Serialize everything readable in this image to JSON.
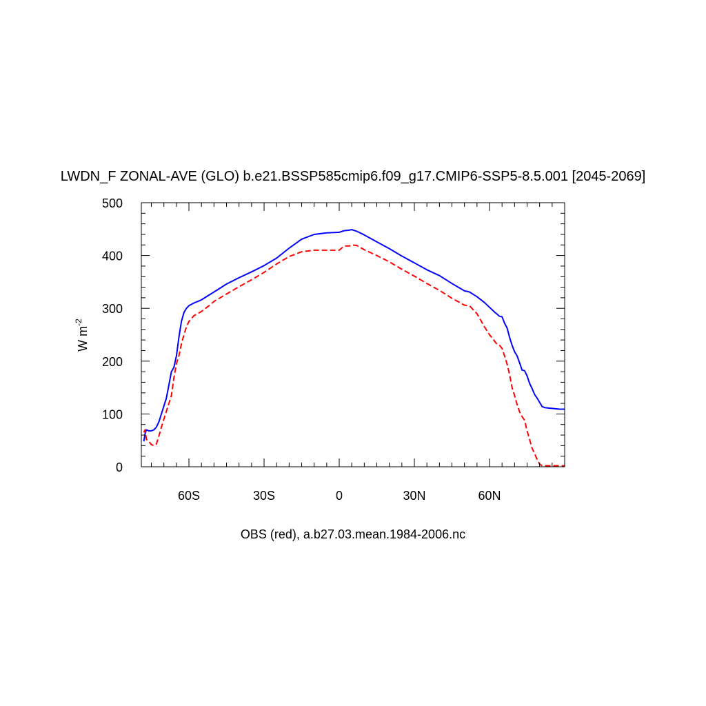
{
  "chart_data": {
    "type": "line",
    "title": "LWDN_F ZONAL-AVE (GLO) b.e21.BSSP585cmip6.f09_g17.CMIP6-SSP5-8.5.001 [2045-2069]",
    "subtitle": "OBS (red), a.b27.03.mean.1984-2006.nc",
    "ylabel": "W m",
    "ylabel_sup": "-2",
    "xlim": [
      -79,
      90
    ],
    "ylim": [
      0,
      500
    ],
    "x_ticks": [
      {
        "value": -60,
        "label": "60S"
      },
      {
        "value": -30,
        "label": "30S"
      },
      {
        "value": 0,
        "label": "0"
      },
      {
        "value": 30,
        "label": "30N"
      },
      {
        "value": 60,
        "label": "60N"
      }
    ],
    "y_ticks": [
      {
        "value": 0,
        "label": "0"
      },
      {
        "value": 100,
        "label": "100"
      },
      {
        "value": 200,
        "label": "200"
      },
      {
        "value": 300,
        "label": "300"
      },
      {
        "value": 400,
        "label": "400"
      },
      {
        "value": 500,
        "label": "500"
      }
    ],
    "series": [
      {
        "name": "",
        "color": "#0000ff",
        "dash": "solid",
        "x": [
          -78,
          -77.5,
          -77,
          -76,
          -75,
          -74,
          -73,
          -72,
          -71,
          -70,
          -69,
          -68,
          -67,
          -66,
          -65,
          -64,
          -63,
          -62,
          -61,
          -60,
          -58,
          -55,
          -52,
          -50,
          -45,
          -40,
          -35,
          -30,
          -25,
          -20,
          -15,
          -10,
          -5,
          0,
          2,
          4,
          5,
          7,
          10,
          15,
          20,
          25,
          30,
          35,
          40,
          45,
          50,
          52,
          55,
          58,
          60,
          62,
          63,
          64,
          65,
          66,
          67,
          68,
          69,
          70,
          71,
          72,
          73,
          74,
          75,
          76,
          77,
          78,
          79,
          80,
          81,
          82,
          84,
          86,
          88,
          90
        ],
        "values": [
          48,
          62,
          70,
          68,
          68,
          70,
          75,
          85,
          100,
          115,
          130,
          155,
          180,
          188,
          210,
          245,
          275,
          292,
          300,
          305,
          310,
          316,
          325,
          331,
          346,
          358,
          369,
          381,
          395,
          414,
          431,
          440,
          443,
          444,
          447,
          448,
          449,
          446,
          439,
          426,
          413,
          399,
          386,
          373,
          362,
          347,
          333,
          331,
          322,
          311,
          302,
          293,
          289,
          285,
          284,
          272,
          263,
          245,
          230,
          218,
          210,
          197,
          183,
          182,
          172,
          158,
          148,
          137,
          130,
          122,
          114,
          112,
          111,
          110,
          109,
          109
        ]
      },
      {
        "name": "OBS",
        "color": "#ff0000",
        "dash": "dashed",
        "x": [
          -78,
          -77.5,
          -77,
          -76,
          -75,
          -74,
          -73,
          -72,
          -71,
          -70,
          -69,
          -68,
          -67,
          -66,
          -65,
          -64,
          -63,
          -62,
          -61,
          -60,
          -58,
          -55,
          -52,
          -50,
          -45,
          -40,
          -35,
          -30,
          -25,
          -20,
          -15,
          -10,
          -5,
          0,
          2,
          4,
          5,
          7,
          10,
          15,
          20,
          25,
          30,
          35,
          40,
          45,
          50,
          52,
          55,
          58,
          60,
          62,
          63,
          64,
          65,
          66,
          67,
          68,
          69,
          70,
          71,
          72,
          73,
          74,
          75,
          76,
          77,
          78,
          79,
          80,
          81,
          82,
          84,
          86,
          88,
          90
        ],
        "values": [
          65,
          70,
          52,
          48,
          42,
          40,
          43,
          58,
          75,
          90,
          105,
          120,
          135,
          168,
          195,
          210,
          232,
          250,
          265,
          275,
          286,
          294,
          305,
          313,
          327,
          341,
          354,
          368,
          384,
          398,
          407,
          410,
          410,
          410,
          418,
          418,
          420,
          419,
          411,
          400,
          388,
          374,
          361,
          347,
          334,
          319,
          306,
          305,
          290,
          265,
          250,
          238,
          232,
          230,
          224,
          210,
          195,
          175,
          150,
          135,
          118,
          104,
          95,
          88,
          68,
          52,
          35,
          25,
          14,
          5,
          2,
          2,
          2,
          2,
          2,
          2
        ]
      }
    ],
    "grid": false,
    "legend": "none"
  }
}
